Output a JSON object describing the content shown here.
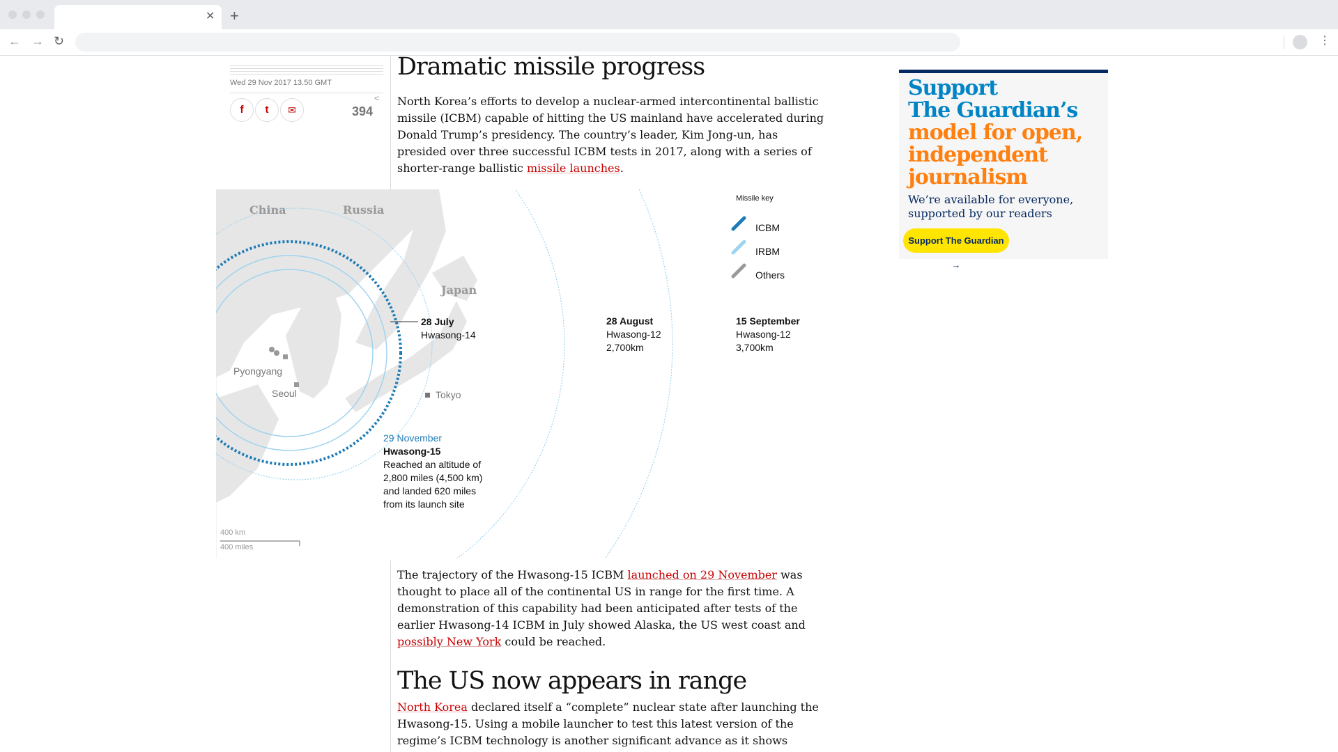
{
  "browser": {
    "tab_close_glyph": "✕",
    "new_tab_glyph": "+",
    "back_glyph": "←",
    "forward_glyph": "→",
    "reload_glyph": "↻",
    "menu_glyph": "⋮"
  },
  "article": {
    "dateline": "Wed 29 Nov 2017 13.50 GMT",
    "share_count": "394",
    "share_icons": [
      "facebook-icon",
      "twitter-icon",
      "email-icon"
    ],
    "share_labels": {
      "facebook": "f",
      "twitter": "t",
      "email": "✉"
    },
    "headline1": "Dramatic missile progress",
    "para1": {
      "text": "North Korea’s efforts to develop a nuclear-armed intercontinental ballistic missile (ICBM) capable of hitting the US mainland have accelerated during Donald Trump’s presidency. The country’s leader, Kim Jong-un, has presided over three successful ICBM tests in 2017, along with a series of shorter-range ballistic ",
      "link": "missile launches",
      "end": "."
    },
    "para2": {
      "pre": "The trajectory of the Hwasong-15 ICBM ",
      "link1": "launched on 29 November",
      "mid": " was thought to place all of the continental US in range for the first time. A demonstration of this capability had been anticipated after tests of the earlier Hwasong-14 ICBM in July showed Alaska, the US west coast and ",
      "link2": "possibly New York",
      "end": " could be reached."
    },
    "headline2": "The US now appears in range",
    "para3": {
      "link": "North Korea",
      "text": " declared itself a “complete” nuclear state after launching the Hwasong-15. Using a mobile launcher to test this latest version of the regime’s ICBM technology is another significant advance as it shows"
    }
  },
  "map": {
    "countries": [
      "China",
      "Russia",
      "Japan"
    ],
    "cities": [
      "Pyongyang",
      "Seoul",
      "Tokyo"
    ],
    "key_title": "Missile key",
    "key": [
      "ICBM",
      "IRBM",
      "Others"
    ],
    "key_colors": [
      "#1d7bb5",
      "#9fd3ef",
      "#999999"
    ],
    "launches": [
      {
        "date": "28 July",
        "missile": "Hwasong-14"
      },
      {
        "date": "28 August",
        "missile": "Hwasong-12",
        "range": "2,700km"
      },
      {
        "date": "15 September",
        "missile": "Hwasong-12",
        "range": "3,700km"
      },
      {
        "date": "29 November",
        "missile": "Hwasong-15",
        "note1": "Reached an altitude of",
        "note2": "2,800 miles (4,500 km)",
        "note3": "and landed 620 miles",
        "note4": "from its launch site"
      }
    ],
    "scale_km": "400 km",
    "scale_miles": "400 miles",
    "highlight_color": "#1d7bb5"
  },
  "ad": {
    "line1": "Support",
    "line2": "The Guardian’s",
    "line3": "model for open,",
    "line4": "independent",
    "line5": "journalism",
    "sub": "We’re available for everyone, supported by our readers",
    "button": "Support The Guardian →"
  }
}
